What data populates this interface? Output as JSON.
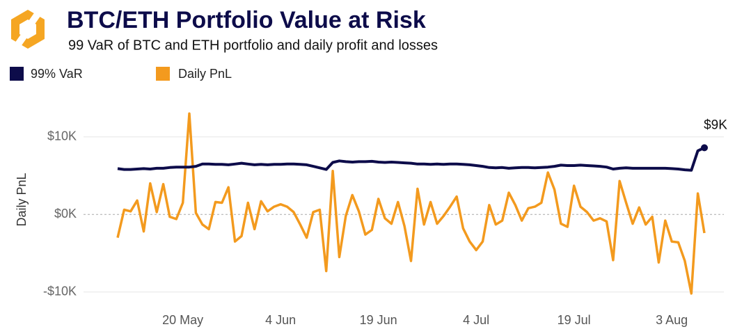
{
  "chart_data": {
    "type": "line",
    "title": "BTC/ETH Portfolio Value at Risk",
    "subtitle": "99 VaR of BTC and ETH portfolio and daily profit and losses",
    "ylabel": "Daily PnL",
    "x": [
      "10 May",
      "11 May",
      "12 May",
      "13 May",
      "14 May",
      "15 May",
      "16 May",
      "17 May",
      "18 May",
      "19 May",
      "20 May",
      "21 May",
      "22 May",
      "23 May",
      "24 May",
      "25 May",
      "26 May",
      "27 May",
      "28 May",
      "29 May",
      "30 May",
      "31 May",
      "1 Jun",
      "2 Jun",
      "3 Jun",
      "4 Jun",
      "5 Jun",
      "6 Jun",
      "7 Jun",
      "8 Jun",
      "9 Jun",
      "10 Jun",
      "11 Jun",
      "12 Jun",
      "13 Jun",
      "14 Jun",
      "15 Jun",
      "16 Jun",
      "17 Jun",
      "18 Jun",
      "19 Jun",
      "20 Jun",
      "21 Jun",
      "22 Jun",
      "23 Jun",
      "24 Jun",
      "25 Jun",
      "26 Jun",
      "27 Jun",
      "28 Jun",
      "29 Jun",
      "30 Jun",
      "1 Jul",
      "2 Jul",
      "3 Jul",
      "4 Jul",
      "5 Jul",
      "6 Jul",
      "7 Jul",
      "8 Jul",
      "9 Jul",
      "10 Jul",
      "11 Jul",
      "12 Jul",
      "13 Jul",
      "14 Jul",
      "15 Jul",
      "16 Jul",
      "17 Jul",
      "18 Jul",
      "19 Jul",
      "20 Jul",
      "21 Jul",
      "22 Jul",
      "23 Jul",
      "24 Jul",
      "25 Jul",
      "26 Jul",
      "27 Jul",
      "28 Jul",
      "29 Jul",
      "30 Jul",
      "31 Jul",
      "1 Aug",
      "2 Aug",
      "3 Aug",
      "4 Aug",
      "5 Aug",
      "6 Aug",
      "7 Aug",
      "8 Aug"
    ],
    "xticks": [
      "20 May",
      "4 Jun",
      "19 Jun",
      "4 Jul",
      "19 Jul",
      "3 Aug"
    ],
    "ylim": [
      -12000,
      15000
    ],
    "yticks": [
      {
        "value": -10000,
        "label": "-$10K"
      },
      {
        "value": 0,
        "label": "$0K"
      },
      {
        "value": 10000,
        "label": "$10K"
      }
    ],
    "grid": true,
    "series": [
      {
        "name": "99% VaR",
        "color": "#0d0c4a",
        "values": [
          5900,
          5800,
          5800,
          5850,
          5900,
          5850,
          5950,
          5950,
          6050,
          6100,
          6100,
          6100,
          6200,
          6500,
          6500,
          6450,
          6450,
          6400,
          6500,
          6600,
          6500,
          6400,
          6450,
          6400,
          6450,
          6450,
          6500,
          6500,
          6450,
          6400,
          6200,
          6000,
          5800,
          6700,
          6900,
          6800,
          6750,
          6800,
          6800,
          6850,
          6750,
          6700,
          6750,
          6700,
          6650,
          6600,
          6500,
          6500,
          6450,
          6500,
          6450,
          6500,
          6500,
          6450,
          6400,
          6300,
          6200,
          6050,
          6000,
          6050,
          5950,
          6000,
          6050,
          6050,
          6000,
          6050,
          6100,
          6200,
          6350,
          6300,
          6300,
          6350,
          6300,
          6250,
          6200,
          6100,
          5850,
          5950,
          6000,
          5950,
          5950,
          5950,
          5950,
          5950,
          5950,
          5900,
          5850,
          5750,
          5700,
          8200,
          8600
        ],
        "value_labels": [
          null,
          null,
          null,
          null,
          null,
          null,
          null,
          null,
          null,
          null,
          null,
          null,
          null,
          null,
          null,
          null,
          null,
          null,
          null,
          null,
          null,
          null,
          null,
          null,
          null,
          null,
          null,
          null,
          null,
          null,
          null,
          null,
          null,
          null,
          null,
          null,
          null,
          null,
          null,
          null,
          null,
          null,
          null,
          null,
          null,
          null,
          null,
          null,
          null,
          null,
          null,
          null,
          null,
          null,
          null,
          null,
          null,
          null,
          null,
          null,
          null,
          null,
          null,
          null,
          null,
          null,
          null,
          null,
          null,
          null,
          null,
          null,
          null,
          null,
          null,
          null,
          null,
          null,
          null,
          null,
          null,
          null,
          null,
          null,
          null,
          null,
          null,
          null,
          null,
          null,
          "$9K"
        ]
      },
      {
        "name": "Daily PnL",
        "color": "#f39a1e",
        "values": [
          -3000,
          600,
          400,
          1800,
          -2200,
          4000,
          300,
          3900,
          -300,
          -600,
          1500,
          13000,
          200,
          -1300,
          -1900,
          1600,
          1500,
          3500,
          -3500,
          -2800,
          1500,
          -1900,
          1700,
          400,
          1000,
          1300,
          1000,
          300,
          -1300,
          -3000,
          300,
          600,
          -7300,
          5600,
          -5500,
          -200,
          2500,
          400,
          -2600,
          -2000,
          2000,
          -500,
          -1200,
          1600,
          -1500,
          -6000,
          3300,
          -1300,
          1600,
          -1200,
          -200,
          1000,
          2300,
          -1800,
          -3500,
          -4600,
          -3500,
          1200,
          -1300,
          -800,
          2800,
          1200,
          -800,
          800,
          1000,
          1500,
          5400,
          3200,
          -1200,
          -1600,
          3700,
          1000,
          300,
          -800,
          -500,
          -900,
          -5900,
          4300,
          1500,
          -1200,
          900,
          -1300,
          -300,
          -6200,
          -800,
          -3500,
          -3600,
          -6000,
          -10200,
          2700,
          -2400
        ]
      }
    ]
  }
}
